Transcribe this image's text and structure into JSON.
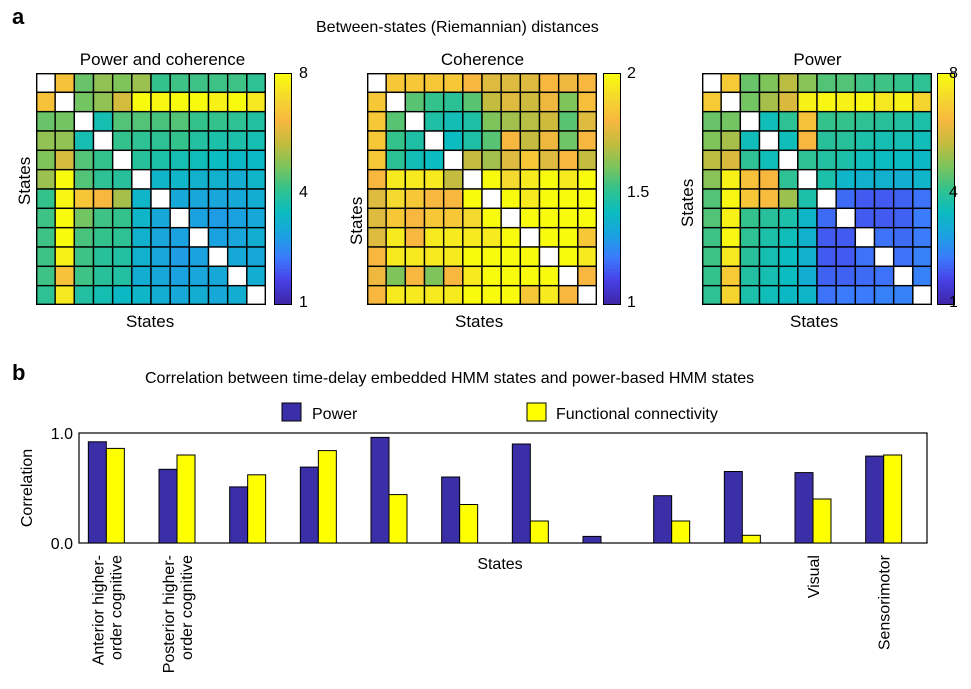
{
  "figure": {
    "panel_a_letter": "a",
    "panel_b_letter": "b",
    "panel_a_title": "Between-states (Riemannian) distances",
    "panel_b_title": "Correlation between time-delay embedded HMM states and power-based HMM states"
  },
  "colors": {
    "power_bar": "#3b2fa8",
    "fc_bar": "#ffff00",
    "colormap": [
      "#3e26a8",
      "#4740e7",
      "#3b7cfc",
      "#1aa2e0",
      "#0bbcc0",
      "#33c28c",
      "#7ec45b",
      "#c4bc3e",
      "#f8b73f",
      "#f4d92e",
      "#f9fb0e"
    ]
  },
  "chart_data": [
    {
      "type": "heatmap",
      "title": "Power and coherence",
      "xlabel": "States",
      "ylabel": "States",
      "colorbar_ticks": [
        "8",
        "4",
        "1"
      ],
      "zlim": [
        1,
        8
      ],
      "size": 12,
      "rows": [
        [
          0,
          6.8,
          5.0,
          5.4,
          5.2,
          5.5,
          4.5,
          4.6,
          4.6,
          4.6,
          4.6,
          4.4
        ],
        [
          6.8,
          0,
          5.1,
          5.4,
          6.1,
          8.0,
          7.9,
          8.0,
          8.0,
          7.8,
          8.0,
          7.6
        ],
        [
          5.0,
          5.1,
          0,
          4.0,
          4.8,
          4.8,
          4.7,
          4.8,
          4.5,
          4.5,
          4.4,
          4.2
        ],
        [
          5.4,
          5.4,
          4.0,
          0,
          4.5,
          4.4,
          4.4,
          4.5,
          4.2,
          4.1,
          4.1,
          4.0
        ],
        [
          5.2,
          6.1,
          4.8,
          4.5,
          0,
          4.3,
          4.1,
          4.0,
          3.9,
          3.8,
          3.7,
          3.7
        ],
        [
          5.5,
          8.0,
          4.8,
          4.4,
          4.3,
          0,
          3.6,
          3.6,
          3.5,
          3.5,
          3.4,
          3.6
        ],
        [
          4.5,
          7.9,
          6.9,
          6.6,
          5.6,
          3.6,
          0,
          3.3,
          3.2,
          3.2,
          3.3,
          3.4
        ],
        [
          4.6,
          8.0,
          5.1,
          4.6,
          4.5,
          3.6,
          3.3,
          0,
          3.1,
          3.0,
          3.1,
          3.3
        ],
        [
          4.6,
          8.0,
          4.7,
          4.5,
          4.4,
          3.5,
          3.2,
          3.1,
          0,
          3.1,
          3.2,
          3.4
        ],
        [
          4.6,
          7.8,
          4.6,
          4.3,
          4.2,
          3.5,
          3.2,
          3.0,
          3.1,
          0,
          3.3,
          3.3
        ],
        [
          4.6,
          6.8,
          4.6,
          4.3,
          4.2,
          3.4,
          3.3,
          3.1,
          3.2,
          3.3,
          0,
          3.4
        ],
        [
          4.4,
          7.6,
          4.2,
          4.0,
          3.7,
          3.6,
          3.4,
          3.3,
          3.4,
          3.3,
          3.4,
          0
        ]
      ]
    },
    {
      "type": "heatmap",
      "title": "Coherence",
      "xlabel": "States",
      "ylabel": "States",
      "colorbar_ticks": [
        "2",
        "1.5",
        "1"
      ],
      "zlim": [
        1,
        2
      ],
      "size": 12,
      "rows": [
        [
          0,
          1.85,
          1.85,
          1.85,
          1.85,
          1.8,
          1.75,
          1.75,
          1.75,
          1.8,
          1.78,
          1.8
        ],
        [
          1.85,
          0,
          1.55,
          1.5,
          1.48,
          1.55,
          1.7,
          1.75,
          1.72,
          1.78,
          1.6,
          1.82
        ],
        [
          1.85,
          1.55,
          0,
          1.45,
          1.42,
          1.45,
          1.6,
          1.65,
          1.68,
          1.72,
          1.55,
          1.75
        ],
        [
          1.85,
          1.5,
          1.45,
          0,
          1.4,
          1.45,
          1.55,
          1.8,
          1.7,
          1.78,
          1.58,
          1.8
        ],
        [
          1.85,
          1.48,
          1.42,
          1.4,
          0,
          1.7,
          1.65,
          1.75,
          1.85,
          1.75,
          1.8,
          1.7
        ],
        [
          1.8,
          1.95,
          1.95,
          1.95,
          1.7,
          0,
          2.0,
          1.9,
          1.95,
          2.0,
          1.95,
          2.0
        ],
        [
          1.75,
          1.9,
          1.85,
          1.8,
          1.8,
          2.0,
          0,
          2.0,
          1.95,
          2.0,
          2.0,
          2.0
        ],
        [
          1.75,
          1.85,
          1.8,
          1.85,
          1.85,
          1.9,
          2.0,
          0,
          2.0,
          2.0,
          2.0,
          2.0
        ],
        [
          1.75,
          1.95,
          1.8,
          1.95,
          1.95,
          1.95,
          1.95,
          2.0,
          0,
          2.0,
          2.0,
          1.85
        ],
        [
          1.8,
          1.95,
          1.95,
          1.95,
          1.95,
          2.0,
          2.0,
          2.0,
          2.0,
          0,
          2.0,
          1.95
        ],
        [
          1.78,
          1.6,
          1.8,
          1.6,
          1.8,
          1.95,
          2.0,
          2.0,
          2.0,
          2.0,
          0,
          1.8
        ],
        [
          1.8,
          1.95,
          1.95,
          1.95,
          1.95,
          2.0,
          2.0,
          2.0,
          1.85,
          1.95,
          1.8,
          0
        ]
      ]
    },
    {
      "type": "heatmap",
      "title": "Power",
      "xlabel": "States",
      "ylabel": "States",
      "colorbar_ticks": [
        "8",
        "4",
        "1"
      ],
      "zlim": [
        1,
        8
      ],
      "size": 12,
      "rows": [
        [
          0,
          7.0,
          5.0,
          5.2,
          5.8,
          5.3,
          4.8,
          4.8,
          4.6,
          4.6,
          4.5,
          4.4
        ],
        [
          7.0,
          0,
          5.1,
          5.6,
          6.2,
          7.8,
          7.9,
          7.8,
          7.9,
          7.6,
          7.8,
          7.2
        ],
        [
          5.0,
          5.1,
          0,
          3.9,
          4.4,
          6.8,
          4.5,
          4.5,
          4.4,
          4.3,
          4.2,
          4.1
        ],
        [
          5.2,
          5.6,
          3.9,
          0,
          3.9,
          6.6,
          4.3,
          4.3,
          4.1,
          4.0,
          4.0,
          3.9
        ],
        [
          5.8,
          6.2,
          4.4,
          3.9,
          0,
          4.4,
          4.2,
          4.1,
          3.9,
          3.8,
          3.8,
          3.7
        ],
        [
          5.3,
          7.8,
          6.8,
          6.6,
          4.4,
          0,
          4.1,
          3.6,
          3.5,
          3.5,
          3.4,
          3.6
        ],
        [
          4.8,
          7.9,
          6.9,
          6.7,
          5.5,
          4.1,
          0,
          2.2,
          2.0,
          2.0,
          2.1,
          2.3
        ],
        [
          4.8,
          7.8,
          4.5,
          4.3,
          4.1,
          3.6,
          2.2,
          0,
          2.0,
          2.0,
          2.1,
          2.4
        ],
        [
          4.6,
          7.9,
          4.4,
          4.1,
          3.9,
          3.5,
          2.0,
          2.0,
          0,
          2.3,
          2.2,
          2.4
        ],
        [
          4.6,
          7.6,
          4.3,
          4.0,
          3.8,
          3.5,
          2.0,
          2.0,
          2.3,
          0,
          2.3,
          2.5
        ],
        [
          4.5,
          7.0,
          4.2,
          4.0,
          3.8,
          3.4,
          2.1,
          2.1,
          2.2,
          2.3,
          0,
          2.5
        ],
        [
          4.4,
          7.2,
          4.1,
          3.9,
          3.7,
          3.6,
          2.3,
          2.4,
          2.4,
          2.5,
          2.5,
          0
        ]
      ]
    },
    {
      "type": "bar",
      "title": "Correlation between time-delay embedded HMM states and power-based HMM states",
      "xlabel": "States",
      "ylabel": "Correlation",
      "ylim": [
        0,
        1
      ],
      "y_ticks": [
        "1.0",
        "0.0"
      ],
      "categories": [
        "Anterior higher-\norder cognitive",
        "Posterior higher-\norder cognitive",
        "",
        "",
        "",
        "",
        "",
        "",
        "",
        "",
        "Visual",
        "Sensorimotor"
      ],
      "series": [
        {
          "name": "Power",
          "values": [
            0.92,
            0.67,
            0.51,
            0.69,
            0.96,
            0.6,
            0.9,
            0.06,
            0.43,
            0.65,
            0.64,
            0.79
          ]
        },
        {
          "name": "Functional connectivity",
          "values": [
            0.86,
            0.8,
            0.62,
            0.84,
            0.44,
            0.35,
            0.2,
            0.0,
            0.2,
            0.07,
            0.4,
            0.8
          ]
        }
      ],
      "legend": "top"
    }
  ]
}
